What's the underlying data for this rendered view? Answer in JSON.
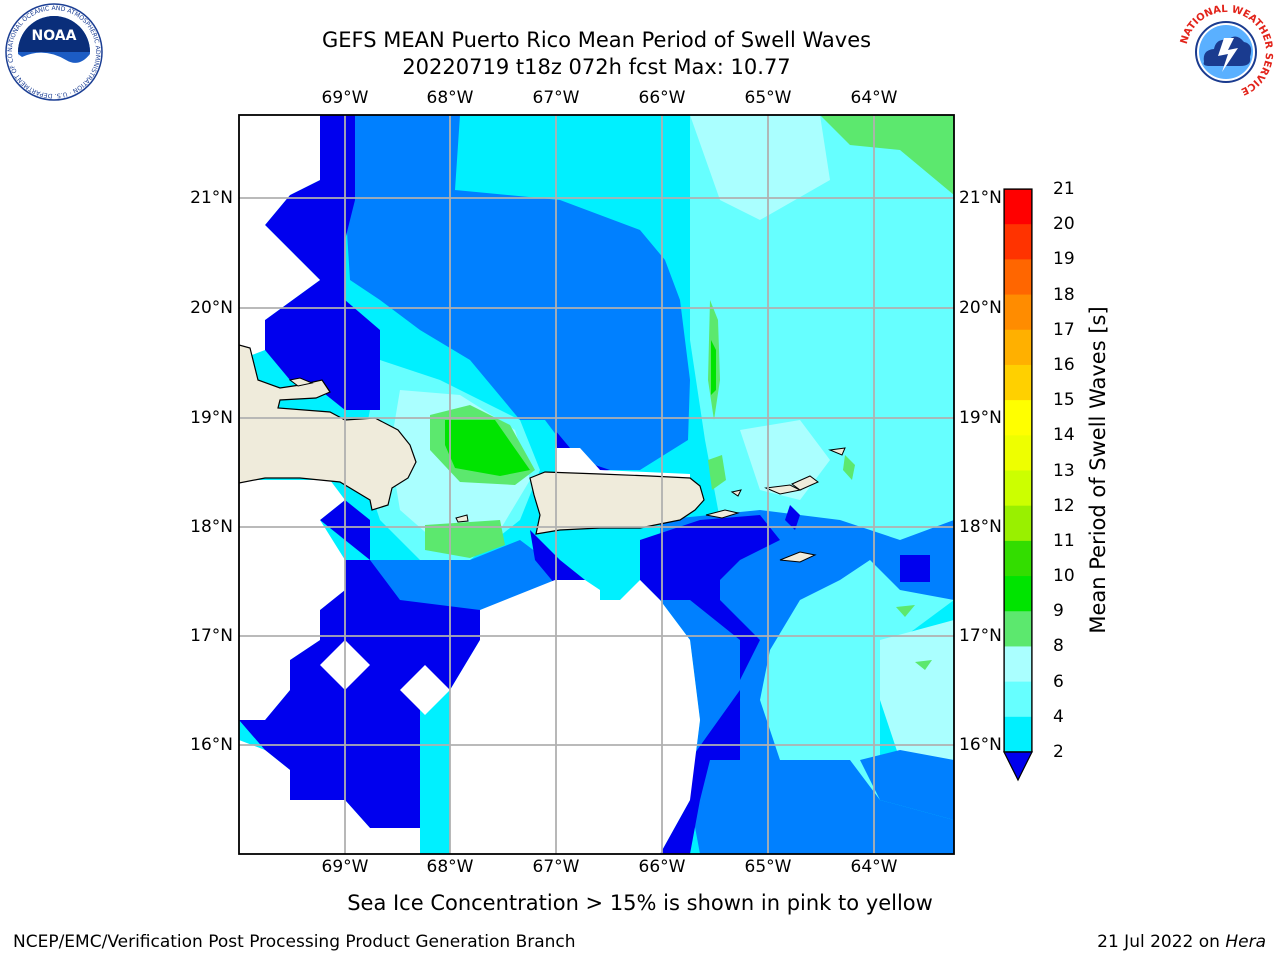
{
  "title": {
    "line1": "GEFS MEAN Puerto Rico Mean Period of Swell Waves",
    "line2": "20220719 t18z 072h fcst   Max: 10.77"
  },
  "map": {
    "lon_labels": [
      "69°W",
      "68°W",
      "67°W",
      "66°W",
      "65°W",
      "64°W"
    ],
    "lat_labels": [
      "21°N",
      "20°N",
      "19°N",
      "18°N",
      "17°N",
      "16°N"
    ],
    "land_color": "#efebdb",
    "grid_color": "#b0b0b0"
  },
  "colorbar": {
    "label": "Mean Period of Swell Waves [s]",
    "ticks": [
      "21",
      "20",
      "19",
      "18",
      "17",
      "16",
      "15",
      "14",
      "13",
      "12",
      "11",
      "10",
      "9",
      "8",
      "6",
      "4",
      "2"
    ],
    "colors": [
      "#ff0000",
      "#ff3300",
      "#ff6600",
      "#ff8c00",
      "#ffb000",
      "#ffd000",
      "#ffff00",
      "#eeff00",
      "#ccff00",
      "#99f000",
      "#33dd00",
      "#00e400",
      "#5ce86e",
      "#aaffff",
      "#66ffff",
      "#00f0ff",
      "#0080ff",
      "#0000ee"
    ]
  },
  "footer": {
    "note": "Sea Ice Concentration > 15% is shown in pink to yellow",
    "left": "NCEP/EMC/Verification Post Processing Product Generation Branch",
    "right_date": "21 Jul 2022 on ",
    "right_host": "Hera"
  },
  "logos": {
    "noaa_text": "NOAA",
    "noaa_ring": "NATIONAL OCEANIC AND ATMOSPHERIC ADMINISTRATION · U.S. DEPARTMENT OF COMMERCE",
    "nws_ring": "NATIONAL WEATHER SERVICE"
  }
}
